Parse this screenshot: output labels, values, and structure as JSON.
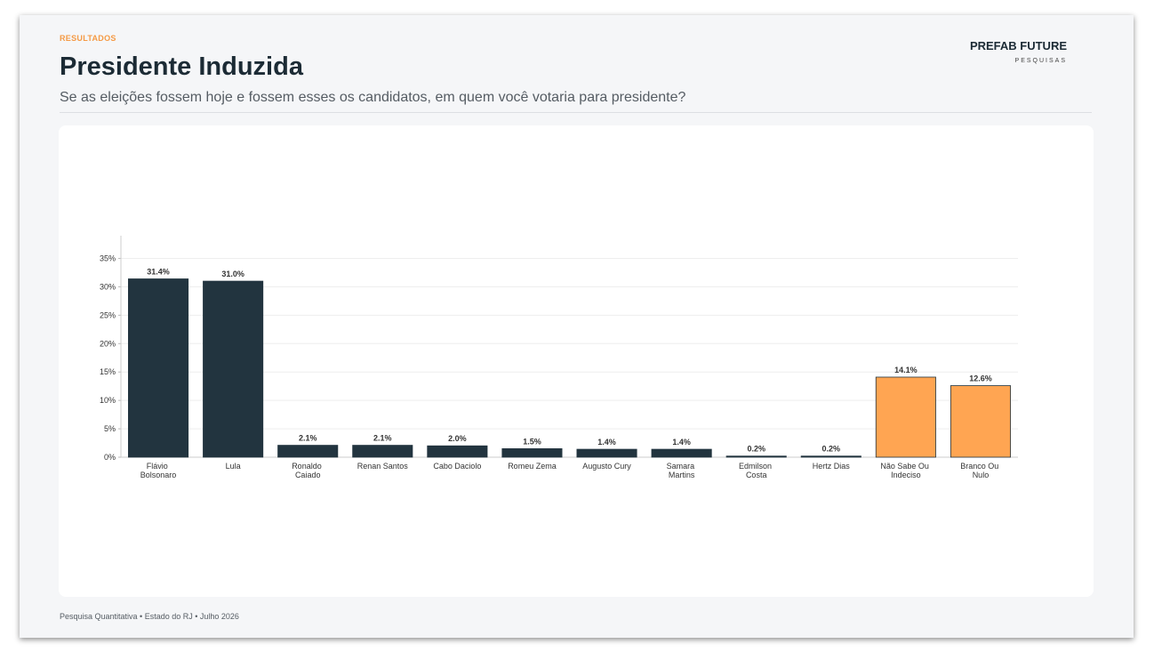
{
  "header": {
    "eyebrow": "RESULTADOS",
    "title": "Presidente Induzida",
    "subtitle": "Se as eleições fossem hoje e fossem esses os candidatos, em quem você votaria para presidente?",
    "brand": "PREFAB FUTURE",
    "brand_sub": "PESQUISAS"
  },
  "footer": "Pesquisa Quantitativa • Estado do RJ • Julho 2026",
  "chart_data": {
    "type": "bar",
    "categories": [
      "Flávio Bolsonaro",
      "Lula",
      "Ronaldo Caiado",
      "Renan Santos",
      "Cabo Daciolo",
      "Romeu Zema",
      "Augusto Cury",
      "Samara Martins",
      "Edmilson Costa",
      "Hertz Dias",
      "Não Sabe Ou Indeciso",
      "Branco Ou Nulo"
    ],
    "values": [
      31.4,
      31.0,
      2.1,
      2.1,
      2.0,
      1.5,
      1.4,
      1.4,
      0.2,
      0.2,
      14.1,
      12.6
    ],
    "value_labels": [
      "31.4%",
      "31.0%",
      "2.1%",
      "2.1%",
      "2.0%",
      "1.5%",
      "1.4%",
      "1.4%",
      "0.2%",
      "0.2%",
      "14.1%",
      "12.6%"
    ],
    "colors": [
      "#22343f",
      "#22343f",
      "#22343f",
      "#22343f",
      "#22343f",
      "#22343f",
      "#22343f",
      "#22343f",
      "#22343f",
      "#22343f",
      "#ffa552",
      "#ffa552"
    ],
    "ylim": [
      0,
      39
    ],
    "yticks": [
      {
        "value": 0,
        "label": "0%"
      },
      {
        "value": 5,
        "label": "5%"
      },
      {
        "value": 10,
        "label": "10%"
      },
      {
        "value": 15,
        "label": "15%"
      },
      {
        "value": 20,
        "label": "20%"
      },
      {
        "value": 25,
        "label": "25%"
      },
      {
        "value": 30,
        "label": "30%"
      },
      {
        "value": 35,
        "label": "35%"
      }
    ],
    "grid": true
  }
}
